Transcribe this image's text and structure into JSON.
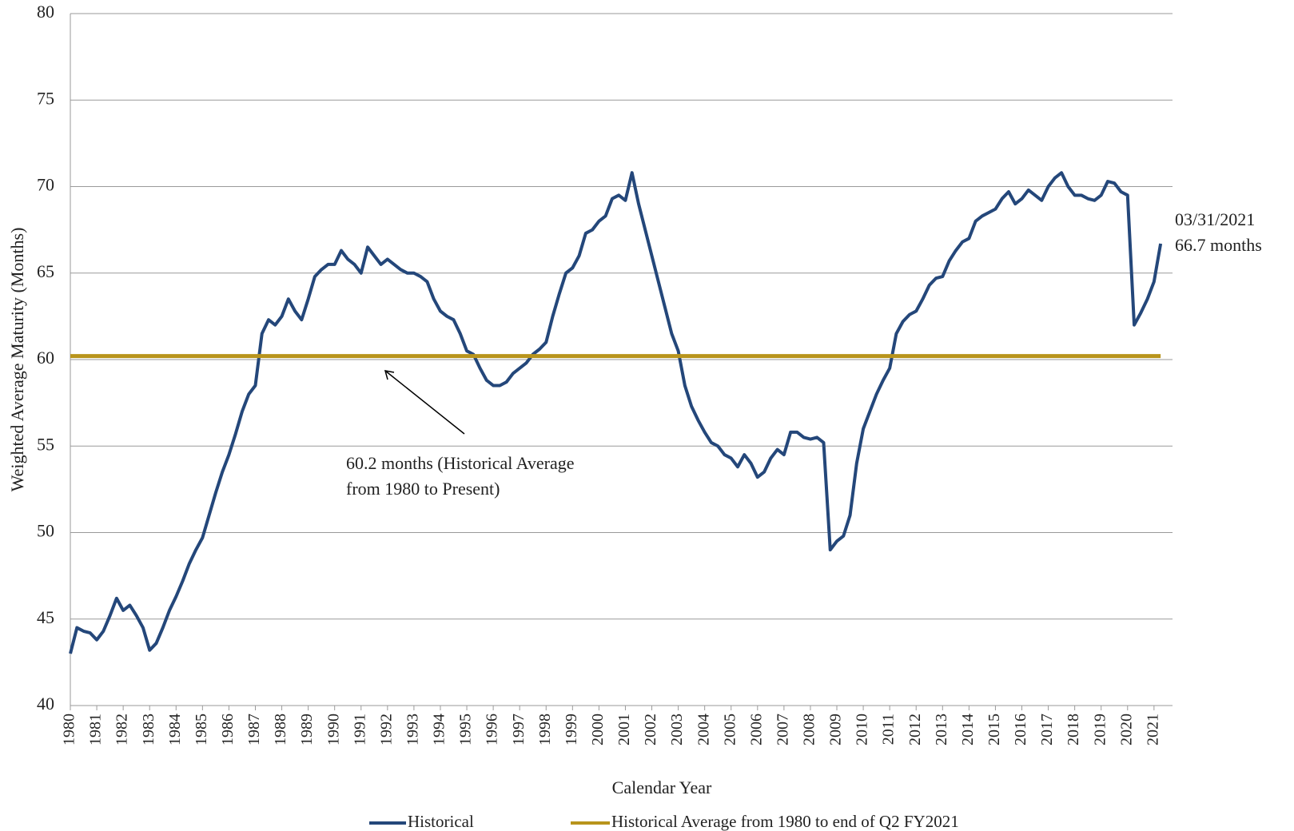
{
  "chart_data": {
    "type": "line",
    "y_label": "Weighted Average Maturity (Months)",
    "x_label": "Calendar Year",
    "annotations": [
      "03/31/2021",
      "66.7 months",
      "60.2 months (Historical Average",
      "from 1980 to Present)"
    ],
    "xlim": [
      1980,
      2021.7
    ],
    "xticks": [
      1980,
      1981,
      1982,
      1983,
      1984,
      1985,
      1986,
      1987,
      1988,
      1989,
      1990,
      1991,
      1992,
      1993,
      1994,
      1995,
      1996,
      1997,
      1998,
      1999,
      2000,
      2001,
      2002,
      2003,
      2004,
      2005,
      2006,
      2007,
      2008,
      2009,
      2010,
      2011,
      2012,
      2013,
      2014,
      2015,
      2016,
      2017,
      2018,
      2019,
      2020,
      2021
    ],
    "ylim": [
      40,
      80
    ],
    "yticks": [
      40,
      45,
      50,
      55,
      60,
      65,
      70,
      75,
      80
    ],
    "grid": true,
    "series": [
      {
        "name": "Historical",
        "color": "#24477a",
        "x": [
          1980,
          1980.25,
          1980.5,
          1980.75,
          1981,
          1981.25,
          1981.5,
          1981.75,
          1982,
          1982.25,
          1982.5,
          1982.75,
          1983,
          1983.25,
          1983.5,
          1983.75,
          1984,
          1984.25,
          1984.5,
          1984.75,
          1985,
          1985.25,
          1985.5,
          1985.75,
          1986,
          1986.25,
          1986.5,
          1986.75,
          1987,
          1987.25,
          1987.5,
          1987.75,
          1988,
          1988.25,
          1988.5,
          1988.75,
          1989,
          1989.25,
          1989.5,
          1989.75,
          1990,
          1990.25,
          1990.5,
          1990.75,
          1991,
          1991.25,
          1991.5,
          1991.75,
          1992,
          1992.25,
          1992.5,
          1992.75,
          1993,
          1993.25,
          1993.5,
          1993.75,
          1994,
          1994.25,
          1994.5,
          1994.75,
          1995,
          1995.25,
          1995.5,
          1995.75,
          1996,
          1996.25,
          1996.5,
          1996.75,
          1997,
          1997.25,
          1997.5,
          1997.75,
          1998,
          1998.25,
          1998.5,
          1998.75,
          1999,
          1999.25,
          1999.5,
          1999.75,
          2000,
          2000.25,
          2000.5,
          2000.75,
          2001,
          2001.25,
          2001.5,
          2001.75,
          2002,
          2002.25,
          2002.5,
          2002.75,
          2003,
          2003.25,
          2003.5,
          2003.75,
          2004,
          2004.25,
          2004.5,
          2004.75,
          2005,
          2005.25,
          2005.5,
          2005.75,
          2006,
          2006.25,
          2006.5,
          2006.75,
          2007,
          2007.25,
          2007.5,
          2007.75,
          2008,
          2008.25,
          2008.5,
          2008.75,
          2009,
          2009.25,
          2009.5,
          2009.75,
          2010,
          2010.25,
          2010.5,
          2010.75,
          2011,
          2011.25,
          2011.5,
          2011.75,
          2012,
          2012.25,
          2012.5,
          2012.75,
          2013,
          2013.25,
          2013.5,
          2013.75,
          2014,
          2014.25,
          2014.5,
          2014.75,
          2015,
          2015.25,
          2015.5,
          2015.75,
          2016,
          2016.25,
          2016.5,
          2016.75,
          2017,
          2017.25,
          2017.5,
          2017.75,
          2018,
          2018.25,
          2018.5,
          2018.75,
          2019,
          2019.25,
          2019.5,
          2019.75,
          2020,
          2020.25,
          2020.5,
          2020.75,
          2021,
          2021.25
        ],
        "values": [
          43,
          44.5,
          44.3,
          44.2,
          43.8,
          44.3,
          45.2,
          46.2,
          45.5,
          45.8,
          45.2,
          44.5,
          43.2,
          43.6,
          44.5,
          45.5,
          46.3,
          47.2,
          48.2,
          49,
          49.7,
          51,
          52.3,
          53.5,
          54.5,
          55.7,
          57,
          58,
          58.5,
          61.5,
          62.3,
          62,
          62.5,
          63.5,
          62.8,
          62.3,
          63.5,
          64.8,
          65.2,
          65.5,
          65.5,
          66.3,
          65.8,
          65.5,
          65,
          66.5,
          66,
          65.5,
          65.8,
          65.5,
          65.2,
          65,
          65,
          64.8,
          64.5,
          63.5,
          62.8,
          62.5,
          62.3,
          61.5,
          60.5,
          60.3,
          59.5,
          58.8,
          58.5,
          58.5,
          58.7,
          59.2,
          59.5,
          59.8,
          60.3,
          60.6,
          61,
          62.5,
          63.8,
          65,
          65.3,
          66,
          67.3,
          67.5,
          68,
          68.3,
          69.3,
          69.5,
          69.2,
          70.8,
          69,
          67.5,
          66,
          64.5,
          63,
          61.5,
          60.5,
          58.5,
          57.3,
          56.5,
          55.8,
          55.2,
          55,
          54.5,
          54.3,
          53.8,
          54.5,
          54,
          53.2,
          53.5,
          54.3,
          54.8,
          54.5,
          55.8,
          55.8,
          55.5,
          55.4,
          55.5,
          55.2,
          49,
          49.5,
          49.8,
          51,
          54,
          56,
          57,
          58,
          58.8,
          59.5,
          61.5,
          62.2,
          62.6,
          62.8,
          63.5,
          64.3,
          64.7,
          64.8,
          65.7,
          66.3,
          66.8,
          67,
          68,
          68.3,
          68.5,
          68.7,
          69.3,
          69.7,
          69,
          69.3,
          69.8,
          69.5,
          69.2,
          70,
          70.5,
          70.8,
          70,
          69.5,
          69.5,
          69.3,
          69.2,
          69.5,
          70.3,
          70.2,
          69.7,
          69.5,
          62,
          62.7,
          63.5,
          64.5,
          66.7
        ]
      },
      {
        "name": "Historical Average from 1980 to end of Q2 FY2021",
        "color": "#b8941c",
        "x": [
          1980,
          2021.25
        ],
        "values": [
          60.2,
          60.2
        ]
      }
    ]
  }
}
